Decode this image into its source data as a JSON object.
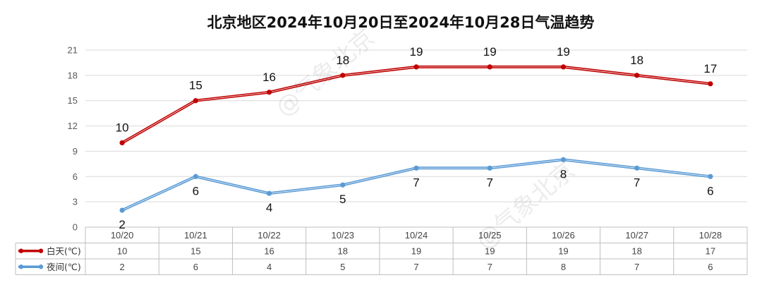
{
  "chart_data": {
    "type": "line",
    "title": "北京地区2024年10月20日至2024年10月28日气温趋势",
    "categories": [
      "10/20",
      "10/21",
      "10/22",
      "10/23",
      "10/24",
      "10/25",
      "10/26",
      "10/27",
      "10/28"
    ],
    "y_ticks": [
      0,
      3,
      6,
      9,
      12,
      15,
      18,
      21
    ],
    "ylim": [
      0,
      21
    ],
    "grid": true,
    "legend": "data-table-left",
    "series": [
      {
        "name": "白天(℃)",
        "color": "#C00000",
        "values": [
          10,
          15,
          16,
          18,
          19,
          19,
          19,
          18,
          17
        ]
      },
      {
        "name": "夜间(℃)",
        "color": "#5B9BD5",
        "values": [
          2,
          6,
          4,
          5,
          7,
          7,
          8,
          7,
          6
        ]
      }
    ]
  },
  "watermark": "@气象北京"
}
